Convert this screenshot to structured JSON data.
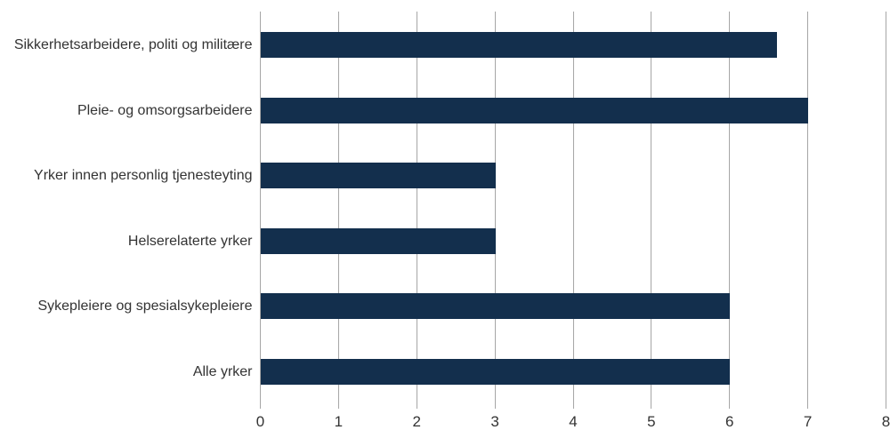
{
  "chart_data": {
    "type": "bar",
    "orientation": "horizontal",
    "title": "",
    "xlabel": "",
    "ylabel": "",
    "categories": [
      "Sikkerhetsarbeidere, politi og militære",
      "Pleie- og omsorgsarbeidere",
      "Yrker innen personlig tjenesteyting",
      "Helserelaterte yrker",
      "Sykepleiere og spesialsykepleiere",
      "Alle yrker"
    ],
    "values": [
      6.6,
      7,
      3,
      3,
      6,
      6
    ],
    "xlim": [
      0,
      8
    ],
    "x_ticks": [
      0,
      1,
      2,
      3,
      4,
      5,
      6,
      7,
      8
    ],
    "x_tick_labels": [
      "0",
      "1",
      "2",
      "3",
      "4",
      "5",
      "6",
      "7",
      "8"
    ],
    "grid": "vertical",
    "legend": "none"
  },
  "colors": {
    "bar": "#132F4D",
    "gridline": "#A6A6A6",
    "tick_text": "#333333",
    "category_text": "#333333",
    "background": "#FFFFFF"
  }
}
